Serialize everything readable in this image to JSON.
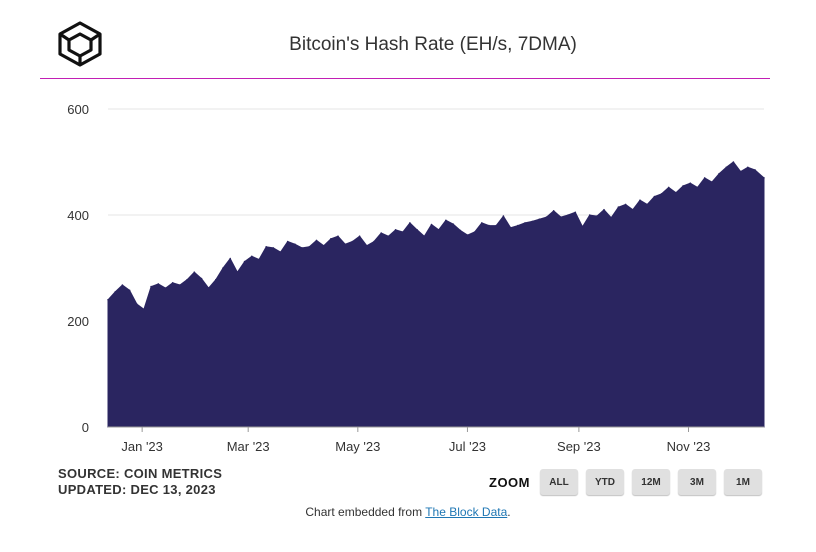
{
  "header": {
    "logo_icon": "cube-logo-icon",
    "title": "Bitcoin's Hash Rate (EH/s, 7DMA)"
  },
  "footer": {
    "source_line1": "SOURCE: COIN METRICS",
    "source_line2": "UPDATED: DEC 13, 2023",
    "zoom_label": "ZOOM",
    "zoom_buttons": [
      "ALL",
      "YTD",
      "12M",
      "3M",
      "1M"
    ],
    "embed_prefix": "Chart embedded from ",
    "embed_link": "The Block Data",
    "embed_suffix": "."
  },
  "colors": {
    "fill": "#2a2560",
    "accent_rule": "#c21fb5",
    "grid": "#e6e6e6",
    "link": "#1f77b4"
  },
  "chart_data": {
    "type": "area",
    "title": "Bitcoin's Hash Rate (EH/s, 7DMA)",
    "xlabel": "",
    "ylabel": "",
    "ylim": [
      0,
      600
    ],
    "yticks": [
      0,
      200,
      400,
      600
    ],
    "xlim": [
      "2022-12-13",
      "2023-12-13"
    ],
    "xticks": [
      {
        "date": "2023-01-01",
        "label": "Jan '23"
      },
      {
        "date": "2023-03-01",
        "label": "Mar '23"
      },
      {
        "date": "2023-05-01",
        "label": "May '23"
      },
      {
        "date": "2023-07-01",
        "label": "Jul '23"
      },
      {
        "date": "2023-09-01",
        "label": "Sep '23"
      },
      {
        "date": "2023-11-01",
        "label": "Nov '23"
      }
    ],
    "grid": true,
    "legend": "none",
    "series": [
      {
        "x": [
          "2022-12-13",
          "2022-12-17",
          "2022-12-21",
          "2022-12-25",
          "2022-12-29",
          "2023-01-02",
          "2023-01-06",
          "2023-01-10",
          "2023-01-14",
          "2023-01-18",
          "2023-01-22",
          "2023-01-26",
          "2023-01-30",
          "2023-02-03",
          "2023-02-07",
          "2023-02-11",
          "2023-02-15",
          "2023-02-19",
          "2023-02-23",
          "2023-02-27",
          "2023-03-03",
          "2023-03-07",
          "2023-03-11",
          "2023-03-15",
          "2023-03-19",
          "2023-03-23",
          "2023-03-27",
          "2023-03-31",
          "2023-04-04",
          "2023-04-08",
          "2023-04-12",
          "2023-04-16",
          "2023-04-20",
          "2023-04-24",
          "2023-04-28",
          "2023-05-02",
          "2023-05-06",
          "2023-05-10",
          "2023-05-14",
          "2023-05-18",
          "2023-05-22",
          "2023-05-26",
          "2023-05-30",
          "2023-06-03",
          "2023-06-07",
          "2023-06-11",
          "2023-06-15",
          "2023-06-19",
          "2023-06-23",
          "2023-06-27",
          "2023-07-01",
          "2023-07-05",
          "2023-07-09",
          "2023-07-13",
          "2023-07-17",
          "2023-07-21",
          "2023-07-25",
          "2023-07-29",
          "2023-08-02",
          "2023-08-06",
          "2023-08-10",
          "2023-08-14",
          "2023-08-18",
          "2023-08-22",
          "2023-08-26",
          "2023-08-30",
          "2023-09-03",
          "2023-09-07",
          "2023-09-11",
          "2023-09-15",
          "2023-09-19",
          "2023-09-23",
          "2023-09-27",
          "2023-10-01",
          "2023-10-05",
          "2023-10-09",
          "2023-10-13",
          "2023-10-17",
          "2023-10-21",
          "2023-10-25",
          "2023-10-29",
          "2023-11-02",
          "2023-11-06",
          "2023-11-10",
          "2023-11-14",
          "2023-11-18",
          "2023-11-22",
          "2023-11-26",
          "2023-11-30",
          "2023-12-04",
          "2023-12-08",
          "2023-12-13"
        ],
        "values": [
          240,
          255,
          268,
          258,
          232,
          222,
          265,
          270,
          262,
          272,
          268,
          278,
          292,
          280,
          262,
          278,
          300,
          318,
          292,
          312,
          322,
          316,
          340,
          338,
          330,
          350,
          345,
          338,
          340,
          352,
          342,
          355,
          360,
          345,
          350,
          360,
          342,
          350,
          366,
          360,
          372,
          368,
          385,
          372,
          360,
          382,
          372,
          390,
          383,
          371,
          362,
          368,
          385,
          380,
          380,
          398,
          376,
          380,
          385,
          388,
          392,
          396,
          408,
          396,
          400,
          405,
          378,
          400,
          398,
          410,
          395,
          415,
          420,
          410,
          428,
          420,
          435,
          440,
          452,
          442,
          455,
          460,
          452,
          470,
          462,
          478,
          490,
          500,
          482,
          490,
          485,
          470
        ]
      }
    ]
  }
}
